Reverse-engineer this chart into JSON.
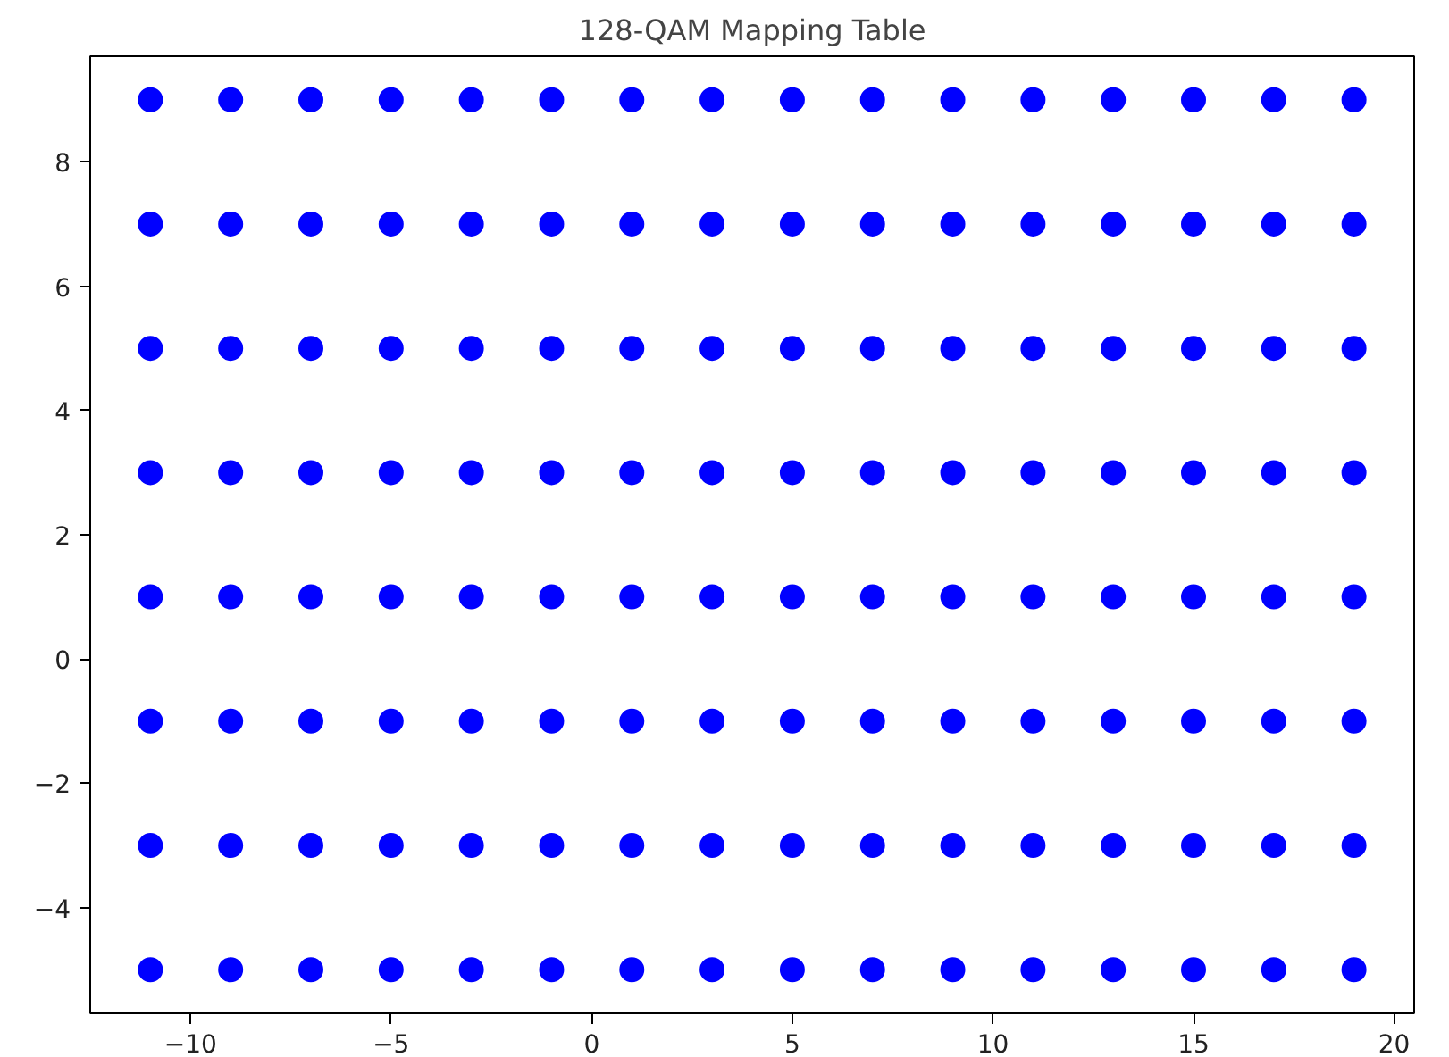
{
  "chart_data": {
    "type": "scatter",
    "title": "128-QAM Mapping Table",
    "xlim": [
      -12.5,
      20.5
    ],
    "ylim": [
      -5.7,
      9.7
    ],
    "xticks": [
      {
        "value": -10,
        "label": "−10"
      },
      {
        "value": -5,
        "label": "−5"
      },
      0,
      5,
      10,
      15,
      20
    ],
    "yticks": [
      {
        "value": -4,
        "label": "−4"
      },
      {
        "value": -2,
        "label": "−2"
      },
      0,
      2,
      4,
      6,
      8
    ],
    "grid": false,
    "marker": "circle",
    "series": [
      {
        "color": "#0000ff",
        "x": [
          -11,
          -9,
          -7,
          -5,
          -3,
          -1,
          1,
          3,
          5,
          7,
          9,
          11,
          13,
          15,
          17,
          19,
          -11,
          -9,
          -7,
          -5,
          -3,
          -1,
          1,
          3,
          5,
          7,
          9,
          11,
          13,
          15,
          17,
          19,
          -11,
          -9,
          -7,
          -5,
          -3,
          -1,
          1,
          3,
          5,
          7,
          9,
          11,
          13,
          15,
          17,
          19,
          -11,
          -9,
          -7,
          -5,
          -3,
          -1,
          1,
          3,
          5,
          7,
          9,
          11,
          13,
          15,
          17,
          19,
          -11,
          -9,
          -7,
          -5,
          -3,
          -1,
          1,
          3,
          5,
          7,
          9,
          11,
          13,
          15,
          17,
          19,
          -11,
          -9,
          -7,
          -5,
          -3,
          -1,
          1,
          3,
          5,
          7,
          9,
          11,
          13,
          15,
          17,
          19,
          -11,
          -9,
          -7,
          -5,
          -3,
          -1,
          1,
          3,
          5,
          7,
          9,
          11,
          13,
          15,
          17,
          19,
          -11,
          -9,
          -7,
          -5,
          -3,
          -1,
          1,
          3,
          5,
          7,
          9,
          11,
          13,
          15,
          17,
          19
        ],
        "values": [
          9,
          9,
          9,
          9,
          9,
          9,
          9,
          9,
          9,
          9,
          9,
          9,
          9,
          9,
          9,
          9,
          7,
          7,
          7,
          7,
          7,
          7,
          7,
          7,
          7,
          7,
          7,
          7,
          7,
          7,
          7,
          7,
          5,
          5,
          5,
          5,
          5,
          5,
          5,
          5,
          5,
          5,
          5,
          5,
          5,
          5,
          5,
          5,
          3,
          3,
          3,
          3,
          3,
          3,
          3,
          3,
          3,
          3,
          3,
          3,
          3,
          3,
          3,
          3,
          1,
          1,
          1,
          1,
          1,
          1,
          1,
          1,
          1,
          1,
          1,
          1,
          1,
          1,
          1,
          1,
          -1,
          -1,
          -1,
          -1,
          -1,
          -1,
          -1,
          -1,
          -1,
          -1,
          -1,
          -1,
          -1,
          -1,
          -1,
          -1,
          -3,
          -3,
          -3,
          -3,
          -3,
          -3,
          -3,
          -3,
          -3,
          -3,
          -3,
          -3,
          -3,
          -3,
          -3,
          -3,
          -5,
          -5,
          -5,
          -5,
          -5,
          -5,
          -5,
          -5,
          -5,
          -5,
          -5,
          -5,
          -5,
          -5,
          -5,
          -5
        ]
      }
    ]
  }
}
